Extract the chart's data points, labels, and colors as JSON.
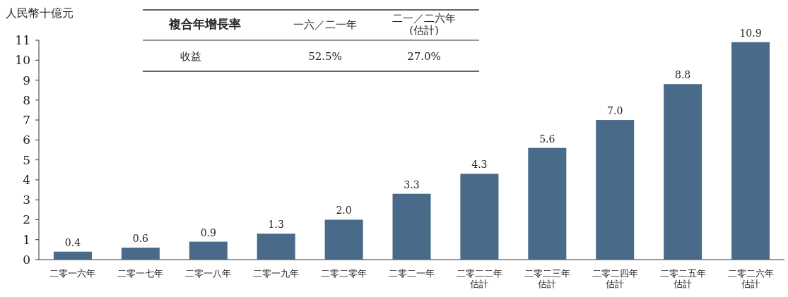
{
  "chart_data": {
    "type": "bar",
    "ylabel": "人民幣十億元",
    "categories": [
      "二零一六年",
      "二零一七年",
      "二零一八年",
      "二零一九年",
      "二零二零年",
      "二零二一年",
      "二零二二年估計",
      "二零二三年估計",
      "二零二四年估計",
      "二零二五年估計",
      "二零二六年估計"
    ],
    "values": [
      0.4,
      0.6,
      0.9,
      1.3,
      2.0,
      3.3,
      4.3,
      5.6,
      7.0,
      8.8,
      10.9
    ],
    "color": "#4a6a89",
    "ylim": [
      0,
      11
    ],
    "yticks": [
      0,
      1,
      2,
      3,
      4,
      5,
      6,
      7,
      8,
      9,
      10,
      11
    ],
    "value_labels": [
      "0.4",
      "0.6",
      "0.9",
      "1.3",
      "2.0",
      "3.3",
      "4.3",
      "5.6",
      "7.0",
      "8.8",
      "10.9"
    ],
    "annotations": [
      "複合年增長率",
      "一六／二一年",
      "二一／二六年(估計)",
      "收益",
      "52.5%",
      "27.0%"
    ]
  }
}
